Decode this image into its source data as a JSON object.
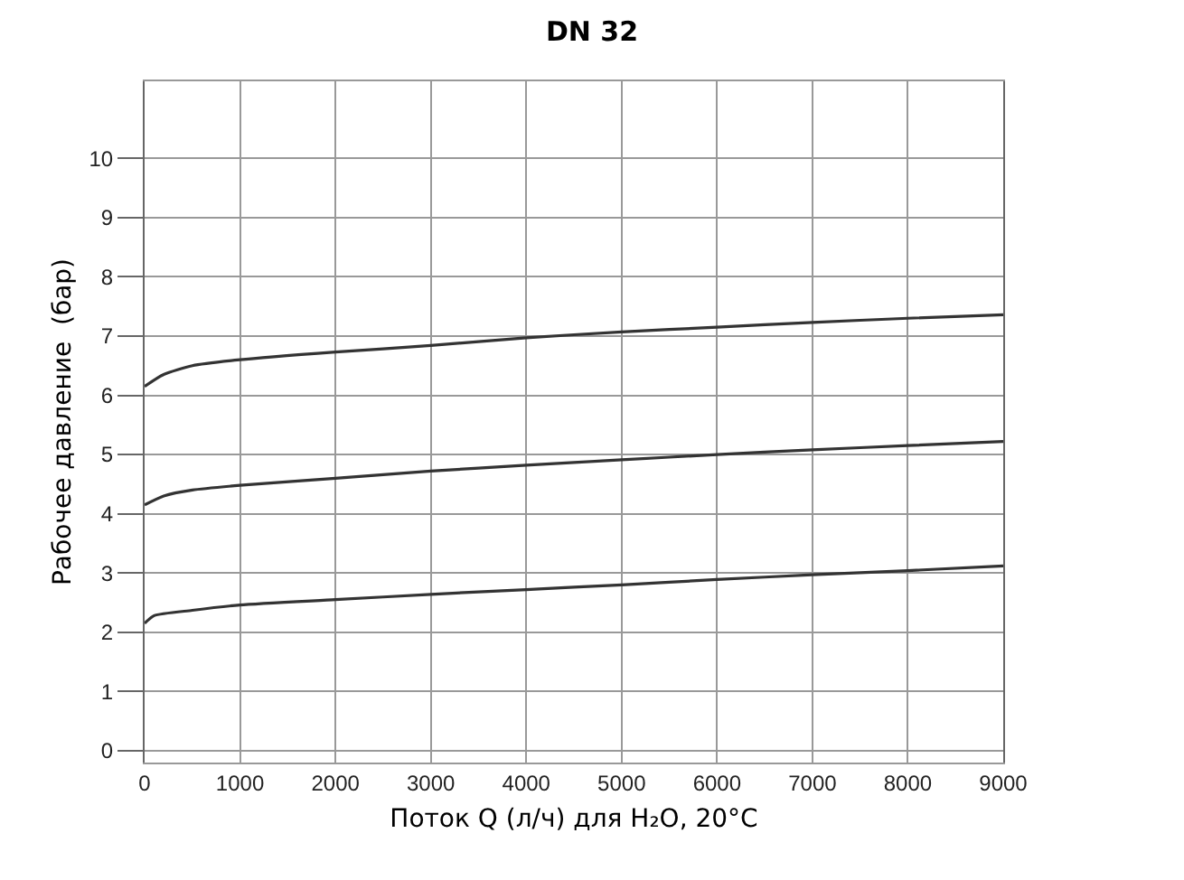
{
  "chart_data": {
    "type": "line",
    "title": "DN 32",
    "xlabel": "Поток Q (л/ч) для H₂O, 20°C",
    "ylabel": "Рабочее давление  (бар)",
    "xlim": [
      0,
      9000
    ],
    "xticks": [
      0,
      1000,
      2000,
      3000,
      4000,
      5000,
      6000,
      7000,
      8000,
      9000
    ],
    "ylim": [
      -0.2,
      11.3
    ],
    "yticks": [
      0,
      1,
      2,
      3,
      4,
      5,
      6,
      7,
      8,
      9,
      10
    ],
    "grid": true,
    "marker": "none",
    "line_style": "solid",
    "series": [
      {
        "color": "#333333",
        "x": [
          0,
          200,
          500,
          1000,
          2000,
          3000,
          4000,
          5000,
          6000,
          7000,
          8000,
          9000
        ],
        "values": [
          6.15,
          6.35,
          6.5,
          6.6,
          6.73,
          6.84,
          6.97,
          7.07,
          7.15,
          7.23,
          7.3,
          7.36
        ]
      },
      {
        "color": "#333333",
        "x": [
          0,
          200,
          500,
          1000,
          2000,
          3000,
          4000,
          5000,
          6000,
          7000,
          8000,
          9000
        ],
        "values": [
          4.15,
          4.3,
          4.4,
          4.48,
          4.6,
          4.72,
          4.82,
          4.91,
          5.0,
          5.08,
          5.15,
          5.22
        ]
      },
      {
        "color": "#333333",
        "x": [
          0,
          100,
          500,
          1000,
          2000,
          3000,
          4000,
          5000,
          6000,
          7000,
          8000,
          9000
        ],
        "values": [
          2.15,
          2.28,
          2.37,
          2.46,
          2.55,
          2.64,
          2.72,
          2.8,
          2.89,
          2.97,
          3.04,
          3.12
        ]
      }
    ]
  }
}
